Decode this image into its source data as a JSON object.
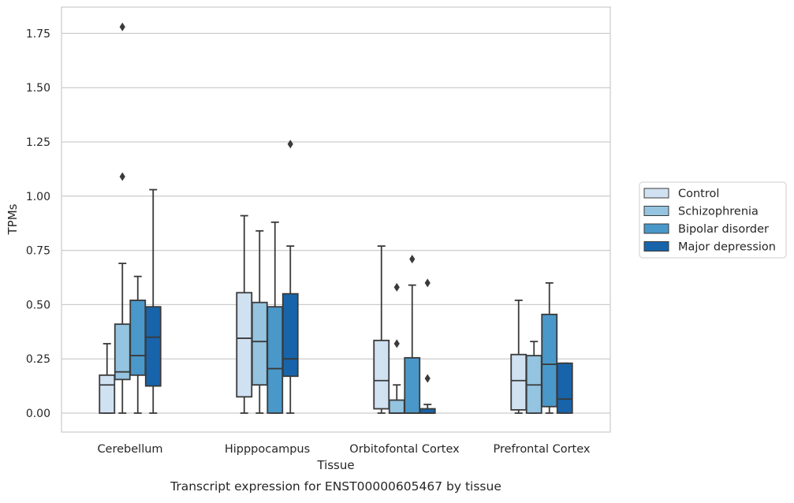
{
  "chart_data": {
    "type": "boxplot",
    "title": "",
    "caption": "Transcript expression for ENST00000605467 by tissue",
    "xlabel": "Tissue",
    "ylabel": "TPMs",
    "ylim": [
      -0.085,
      1.87
    ],
    "yticks": [
      0.0,
      0.25,
      0.5,
      0.75,
      1.0,
      1.25,
      1.5,
      1.75
    ],
    "ytick_labels": [
      "0.00",
      "0.25",
      "0.50",
      "0.75",
      "1.00",
      "1.25",
      "1.50",
      "1.75"
    ],
    "grid": "horizontal",
    "legend_position": "right, outside plot",
    "categories": [
      "Cerebellum",
      "Hipppocampus",
      "Orbitofontal Cortex",
      "Prefrontal Cortex"
    ],
    "series": [
      {
        "name": "Control",
        "color": "#d0e1f2",
        "boxes": [
          {
            "whislo": 0.0,
            "q1": 0.0,
            "med": 0.13,
            "q3": 0.175,
            "whishi": 0.32,
            "fliers": []
          },
          {
            "whislo": 0.0,
            "q1": 0.075,
            "med": 0.345,
            "q3": 0.555,
            "whishi": 0.91,
            "fliers": []
          },
          {
            "whislo": 0.0,
            "q1": 0.02,
            "med": 0.15,
            "q3": 0.335,
            "whishi": 0.77,
            "fliers": []
          },
          {
            "whislo": 0.0,
            "q1": 0.015,
            "med": 0.15,
            "q3": 0.27,
            "whishi": 0.52,
            "fliers": []
          }
        ]
      },
      {
        "name": "Schizophrenia",
        "color": "#94c4df",
        "boxes": [
          {
            "whislo": 0.0,
            "q1": 0.155,
            "med": 0.19,
            "q3": 0.41,
            "whishi": 0.69,
            "fliers": [
              1.09,
              1.78
            ]
          },
          {
            "whislo": 0.0,
            "q1": 0.13,
            "med": 0.33,
            "q3": 0.51,
            "whishi": 0.84,
            "fliers": []
          },
          {
            "whislo": 0.0,
            "q1": 0.0,
            "med": 0.0,
            "q3": 0.06,
            "whishi": 0.13,
            "fliers": [
              0.32,
              0.58
            ]
          },
          {
            "whislo": 0.0,
            "q1": 0.0,
            "med": 0.13,
            "q3": 0.265,
            "whishi": 0.33,
            "fliers": []
          }
        ]
      },
      {
        "name": "Bipolar disorder",
        "color": "#4a98c9",
        "boxes": [
          {
            "whislo": 0.0,
            "q1": 0.175,
            "med": 0.265,
            "q3": 0.52,
            "whishi": 0.63,
            "fliers": []
          },
          {
            "whislo": 0.0,
            "q1": 0.0,
            "med": 0.205,
            "q3": 0.49,
            "whishi": 0.88,
            "fliers": []
          },
          {
            "whislo": 0.0,
            "q1": 0.0,
            "med": 0.0,
            "q3": 0.255,
            "whishi": 0.59,
            "fliers": [
              0.71
            ]
          },
          {
            "whislo": 0.0,
            "q1": 0.03,
            "med": 0.225,
            "q3": 0.455,
            "whishi": 0.6,
            "fliers": []
          }
        ]
      },
      {
        "name": "Major depression",
        "color": "#1764ab",
        "boxes": [
          {
            "whislo": 0.0,
            "q1": 0.125,
            "med": 0.35,
            "q3": 0.49,
            "whishi": 1.03,
            "fliers": []
          },
          {
            "whislo": 0.0,
            "q1": 0.17,
            "med": 0.25,
            "q3": 0.55,
            "whishi": 0.77,
            "fliers": [
              1.24
            ]
          },
          {
            "whislo": 0.0,
            "q1": 0.0,
            "med": 0.0,
            "q3": 0.02,
            "whishi": 0.04,
            "fliers": [
              0.16,
              0.6
            ]
          },
          {
            "whislo": 0.0,
            "q1": 0.0,
            "med": 0.065,
            "q3": 0.23,
            "whishi": 0.23,
            "fliers": []
          }
        ]
      }
    ]
  },
  "colors": {
    "line": "#3a3a3a",
    "grid": "#cccccc",
    "frame": "#cccccc",
    "text": "#262626"
  }
}
